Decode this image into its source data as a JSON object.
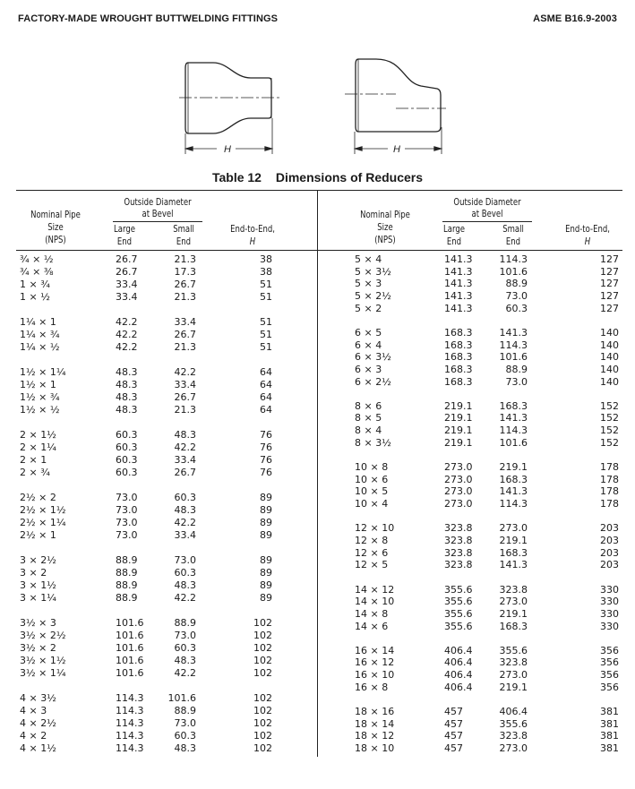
{
  "page_header": {
    "left": "FACTORY-MADE WROUGHT BUTTWELDING FITTINGS",
    "right": "ASME B16.9-2003"
  },
  "figure": {
    "dimension_label_concentric": "H",
    "dimension_label_eccentric": "H",
    "icons": [
      "concentric-reducer-drawing",
      "eccentric-reducer-drawing"
    ]
  },
  "table": {
    "number": "Table 12",
    "title": "Dimensions of Reducers",
    "headers": {
      "nps": [
        "Nominal Pipe",
        "Size",
        "(NPS)"
      ],
      "od_group": [
        "Outside Diameter",
        "at Bevel"
      ],
      "large": [
        "Large",
        "End"
      ],
      "small": [
        "Small",
        "End"
      ],
      "h": [
        "End-to-End,",
        "H"
      ]
    },
    "left_groups": [
      [
        [
          "¾ × ½",
          "26.7",
          "21.3",
          "38"
        ],
        [
          "¾ × ⅜",
          "26.7",
          "17.3",
          "38"
        ],
        [
          "1 × ¾",
          "33.4",
          "26.7",
          "51"
        ],
        [
          "1 × ½",
          "33.4",
          "21.3",
          "51"
        ]
      ],
      [
        [
          "1¼ × 1",
          "42.2",
          "33.4",
          "51"
        ],
        [
          "1¼ × ¾",
          "42.2",
          "26.7",
          "51"
        ],
        [
          "1¼ × ½",
          "42.2",
          "21.3",
          "51"
        ]
      ],
      [
        [
          "1½ × 1¼",
          "48.3",
          "42.2",
          "64"
        ],
        [
          "1½ × 1",
          "48.3",
          "33.4",
          "64"
        ],
        [
          "1½ × ¾",
          "48.3",
          "26.7",
          "64"
        ],
        [
          "1½ × ½",
          "48.3",
          "21.3",
          "64"
        ]
      ],
      [
        [
          "2 × 1½",
          "60.3",
          "48.3",
          "76"
        ],
        [
          "2 × 1¼",
          "60.3",
          "42.2",
          "76"
        ],
        [
          "2 × 1",
          "60.3",
          "33.4",
          "76"
        ],
        [
          "2 × ¾",
          "60.3",
          "26.7",
          "76"
        ]
      ],
      [
        [
          "2½ × 2",
          "73.0",
          "60.3",
          "89"
        ],
        [
          "2½ × 1½",
          "73.0",
          "48.3",
          "89"
        ],
        [
          "2½ × 1¼",
          "73.0",
          "42.2",
          "89"
        ],
        [
          "2½ × 1",
          "73.0",
          "33.4",
          "89"
        ]
      ],
      [
        [
          "3 × 2½",
          "88.9",
          "73.0",
          "89"
        ],
        [
          "3 × 2",
          "88.9",
          "60.3",
          "89"
        ],
        [
          "3 × 1½",
          "88.9",
          "48.3",
          "89"
        ],
        [
          "3 × 1¼",
          "88.9",
          "42.2",
          "89"
        ]
      ],
      [
        [
          "3½ × 3",
          "101.6",
          "88.9",
          "102"
        ],
        [
          "3½ × 2½",
          "101.6",
          "73.0",
          "102"
        ],
        [
          "3½ × 2",
          "101.6",
          "60.3",
          "102"
        ],
        [
          "3½ × 1½",
          "101.6",
          "48.3",
          "102"
        ],
        [
          "3½ × 1¼",
          "101.6",
          "42.2",
          "102"
        ]
      ],
      [
        [
          "4 × 3½",
          "114.3",
          "101.6",
          "102"
        ],
        [
          "4 × 3",
          "114.3",
          "88.9",
          "102"
        ],
        [
          "4 × 2½",
          "114.3",
          "73.0",
          "102"
        ],
        [
          "4 × 2",
          "114.3",
          "60.3",
          "102"
        ],
        [
          "4 × 1½",
          "114.3",
          "48.3",
          "102"
        ]
      ]
    ],
    "right_groups": [
      [
        [
          "5 × 4",
          "141.3",
          "114.3",
          "127"
        ],
        [
          "5 × 3½",
          "141.3",
          "101.6",
          "127"
        ],
        [
          "5 × 3",
          "141.3",
          "88.9",
          "127"
        ],
        [
          "5 × 2½",
          "141.3",
          "73.0",
          "127"
        ],
        [
          "5 × 2",
          "141.3",
          "60.3",
          "127"
        ]
      ],
      [
        [
          "6 × 5",
          "168.3",
          "141.3",
          "140"
        ],
        [
          "6 × 4",
          "168.3",
          "114.3",
          "140"
        ],
        [
          "6 × 3½",
          "168.3",
          "101.6",
          "140"
        ],
        [
          "6 × 3",
          "168.3",
          "88.9",
          "140"
        ],
        [
          "6 × 2½",
          "168.3",
          "73.0",
          "140"
        ]
      ],
      [
        [
          "8 × 6",
          "219.1",
          "168.3",
          "152"
        ],
        [
          "8 × 5",
          "219.1",
          "141.3",
          "152"
        ],
        [
          "8 × 4",
          "219.1",
          "114.3",
          "152"
        ],
        [
          "8 × 3½",
          "219.1",
          "101.6",
          "152"
        ]
      ],
      [
        [
          "10 × 8",
          "273.0",
          "219.1",
          "178"
        ],
        [
          "10 × 6",
          "273.0",
          "168.3",
          "178"
        ],
        [
          "10 × 5",
          "273.0",
          "141.3",
          "178"
        ],
        [
          "10 × 4",
          "273.0",
          "114.3",
          "178"
        ]
      ],
      [
        [
          "12 × 10",
          "323.8",
          "273.0",
          "203"
        ],
        [
          "12 × 8",
          "323.8",
          "219.1",
          "203"
        ],
        [
          "12 × 6",
          "323.8",
          "168.3",
          "203"
        ],
        [
          "12 × 5",
          "323.8",
          "141.3",
          "203"
        ]
      ],
      [
        [
          "14 × 12",
          "355.6",
          "323.8",
          "330"
        ],
        [
          "14 × 10",
          "355.6",
          "273.0",
          "330"
        ],
        [
          "14 × 8",
          "355.6",
          "219.1",
          "330"
        ],
        [
          "14 × 6",
          "355.6",
          "168.3",
          "330"
        ]
      ],
      [
        [
          "16 × 14",
          "406.4",
          "355.6",
          "356"
        ],
        [
          "16 × 12",
          "406.4",
          "323.8",
          "356"
        ],
        [
          "16 × 10",
          "406.4",
          "273.0",
          "356"
        ],
        [
          "16 × 8",
          "406.4",
          "219.1",
          "356"
        ]
      ],
      [
        [
          "18 × 16",
          "457",
          "406.4",
          "381"
        ],
        [
          "18 × 14",
          "457",
          "355.6",
          "381"
        ],
        [
          "18 × 12",
          "457",
          "323.8",
          "381"
        ],
        [
          "18 × 10",
          "457",
          "273.0",
          "381"
        ]
      ]
    ]
  }
}
